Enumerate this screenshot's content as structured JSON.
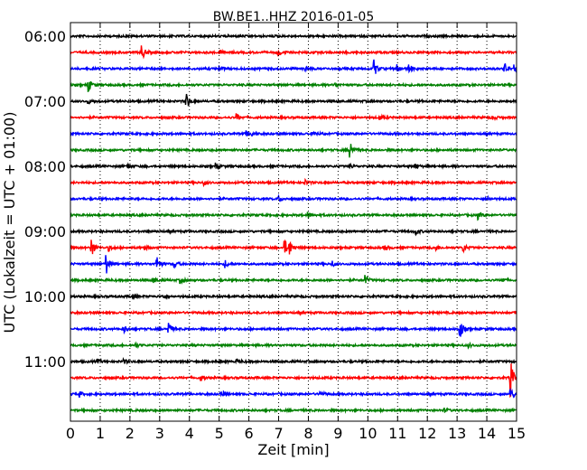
{
  "chart_data": {
    "type": "line",
    "title": "BW.BE1..HHZ 2016-01-05",
    "xlabel": "Zeit  [min]",
    "ylabel": "UTC (Lokalzeit = UTC + 01:00)",
    "xlim": [
      0,
      15
    ],
    "x_ticks": [
      "0",
      "1",
      "2",
      "3",
      "4",
      "5",
      "6",
      "7",
      "8",
      "9",
      "10",
      "11",
      "12",
      "13",
      "14",
      "15"
    ],
    "y_tick_labels": [
      "06:00",
      "07:00",
      "08:00",
      "09:00",
      "10:00",
      "11:00"
    ],
    "grid": "vertical dotted lines at every minute",
    "color_cycle": [
      "#000000",
      "#ff0000",
      "#0000ff",
      "#008000"
    ],
    "series": [
      {
        "label": "06:00",
        "events": []
      },
      {
        "label": "06:15",
        "events": [
          {
            "t": 2.4,
            "a": 0.9
          },
          {
            "t": 5.0,
            "a": 0.3
          },
          {
            "t": 7.0,
            "a": 0.4
          }
        ]
      },
      {
        "label": "06:30",
        "events": [
          {
            "t": 5.0,
            "a": 0.3
          },
          {
            "t": 7.9,
            "a": 0.25
          },
          {
            "t": 10.2,
            "a": 1.0
          },
          {
            "t": 11.0,
            "a": 0.5
          },
          {
            "t": 11.4,
            "a": 0.5
          },
          {
            "t": 14.6,
            "a": 0.6
          },
          {
            "t": 14.9,
            "a": 0.4
          }
        ]
      },
      {
        "label": "06:45",
        "events": [
          {
            "t": 0.6,
            "a": 0.8
          },
          {
            "t": 8.9,
            "a": 0.25
          }
        ]
      },
      {
        "label": "07:00",
        "events": [
          {
            "t": 0.6,
            "a": 0.25
          },
          {
            "t": 3.9,
            "a": 0.9
          }
        ]
      },
      {
        "label": "07:15",
        "events": [
          {
            "t": 5.6,
            "a": 0.4
          },
          {
            "t": 10.4,
            "a": 0.3
          },
          {
            "t": 14.2,
            "a": 0.25
          }
        ]
      },
      {
        "label": "07:30",
        "events": [
          {
            "t": 5.9,
            "a": 0.3
          },
          {
            "t": 6.1,
            "a": 0.3
          },
          {
            "t": 8.2,
            "a": 0.3
          }
        ]
      },
      {
        "label": "07:45",
        "events": [
          {
            "t": 9.4,
            "a": 1.2
          }
        ]
      },
      {
        "label": "08:00",
        "events": [
          {
            "t": 1.9,
            "a": 0.3
          },
          {
            "t": 4.9,
            "a": 0.3
          },
          {
            "t": 9.4,
            "a": 0.25
          },
          {
            "t": 11.6,
            "a": 0.3
          }
        ]
      },
      {
        "label": "08:15",
        "events": [
          {
            "t": 4.5,
            "a": 0.25
          },
          {
            "t": 7.9,
            "a": 0.25
          }
        ]
      },
      {
        "label": "08:30",
        "events": [
          {
            "t": 7.0,
            "a": 0.35
          },
          {
            "t": 14.0,
            "a": 0.25
          }
        ]
      },
      {
        "label": "08:45",
        "events": [
          {
            "t": 8.0,
            "a": 0.3
          },
          {
            "t": 13.7,
            "a": 0.4
          }
        ]
      },
      {
        "label": "09:00",
        "events": [
          {
            "t": 11.6,
            "a": 0.4
          }
        ]
      },
      {
        "label": "09:15",
        "events": [
          {
            "t": 0.7,
            "a": 1.3
          },
          {
            "t": 1.3,
            "a": 0.3
          },
          {
            "t": 2.5,
            "a": 0.3
          },
          {
            "t": 7.2,
            "a": 0.9
          },
          {
            "t": 7.35,
            "a": 0.9
          },
          {
            "t": 10.6,
            "a": 0.3
          },
          {
            "t": 12.3,
            "a": 0.3
          },
          {
            "t": 13.2,
            "a": 0.5
          }
        ]
      },
      {
        "label": "09:30",
        "events": [
          {
            "t": 1.2,
            "a": 1.2
          },
          {
            "t": 2.9,
            "a": 0.8
          },
          {
            "t": 3.5,
            "a": 0.4
          },
          {
            "t": 5.2,
            "a": 0.4
          },
          {
            "t": 8.8,
            "a": 0.3
          }
        ]
      },
      {
        "label": "09:45",
        "events": [
          {
            "t": 2.8,
            "a": 0.3
          },
          {
            "t": 3.7,
            "a": 0.3
          },
          {
            "t": 9.9,
            "a": 0.6
          },
          {
            "t": 14.5,
            "a": 0.3
          }
        ]
      },
      {
        "label": "10:00",
        "events": [
          {
            "t": 2.1,
            "a": 0.2
          },
          {
            "t": 3.1,
            "a": 0.2
          }
        ]
      },
      {
        "label": "10:15",
        "events": []
      },
      {
        "label": "10:30",
        "events": [
          {
            "t": 1.8,
            "a": 0.4
          },
          {
            "t": 3.3,
            "a": 0.8
          },
          {
            "t": 13.1,
            "a": 1.1
          }
        ]
      },
      {
        "label": "10:45",
        "events": [
          {
            "t": 2.2,
            "a": 0.2
          },
          {
            "t": 13.4,
            "a": 0.2
          }
        ]
      },
      {
        "label": "11:00",
        "events": [
          {
            "t": 0.9,
            "a": 0.2
          },
          {
            "t": 1.8,
            "a": 0.2
          },
          {
            "t": 5.6,
            "a": 0.2
          }
        ]
      },
      {
        "label": "11:15",
        "events": [
          {
            "t": 4.4,
            "a": 0.3
          },
          {
            "t": 14.8,
            "a": 2.0
          }
        ]
      },
      {
        "label": "11:30",
        "events": [
          {
            "t": 0.3,
            "a": 0.3
          },
          {
            "t": 5.1,
            "a": 0.3
          },
          {
            "t": 8.4,
            "a": 0.35
          },
          {
            "t": 14.8,
            "a": 0.6
          }
        ]
      },
      {
        "label": "11:45",
        "events": [
          {
            "t": 12.6,
            "a": 0.2
          }
        ]
      }
    ]
  }
}
